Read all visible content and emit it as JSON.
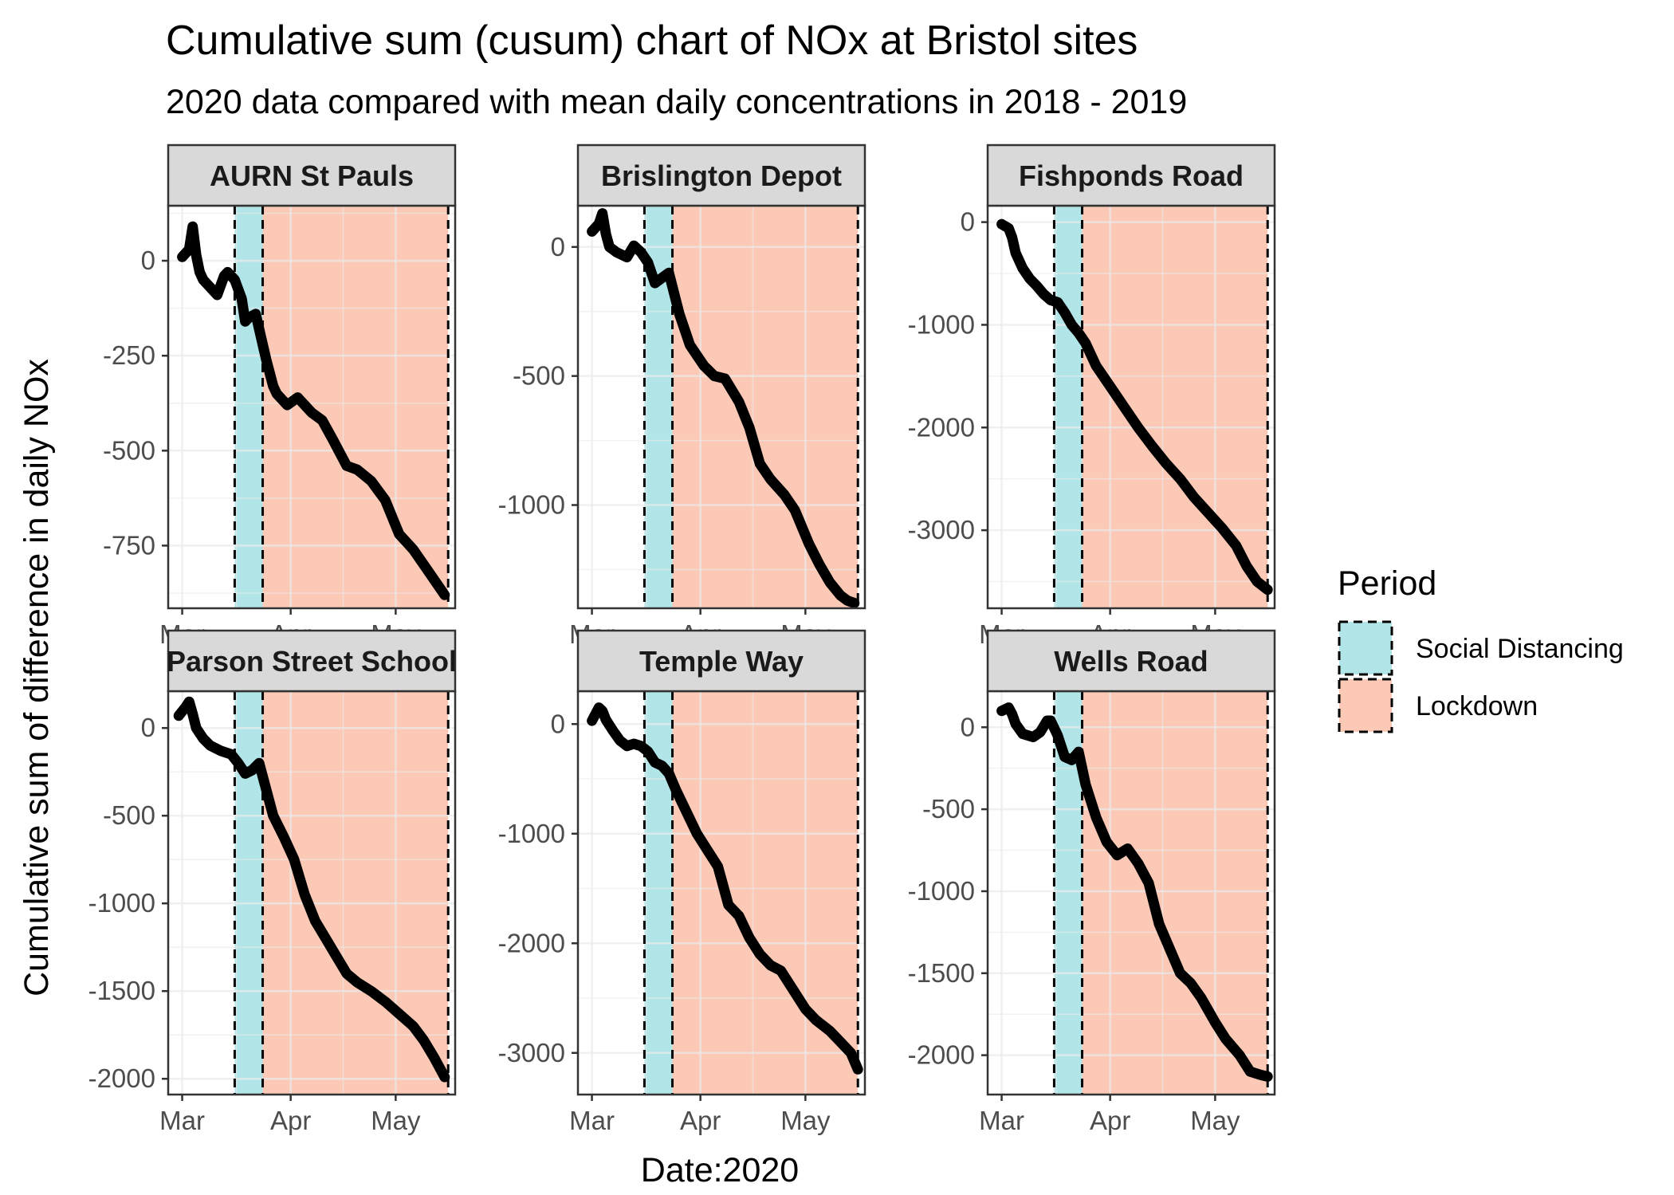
{
  "title": "Cumulative sum (cusum) chart of NOx at Bristol sites",
  "subtitle": "2020 data compared with mean daily concentrations in 2018 - 2019",
  "chart_data": {
    "type": "line",
    "facets": true,
    "xlabel": "Date:2020",
    "ylabel": "Cumulative sum of difference in daily NOx",
    "x_ticks": [
      "Mar",
      "Apr",
      "May"
    ],
    "x_tick_dates": [
      "2020-03-01",
      "2020-04-01",
      "2020-05-01"
    ],
    "xlim": [
      "2020-02-26",
      "2020-05-18"
    ],
    "periods": [
      {
        "name": "Social Distancing",
        "start": "2020-03-16",
        "end": "2020-03-24",
        "color": "#b2e5e8"
      },
      {
        "name": "Lockdown",
        "start": "2020-03-24",
        "end": "2020-05-16",
        "color": "#fbc9b6"
      }
    ],
    "panels": [
      {
        "site": "AURN St Pauls",
        "ylim": [
          -915,
          145
        ],
        "y_ticks": [
          0,
          -250,
          -500,
          -750
        ],
        "tick_labels": [
          "0",
          "-250",
          "-500",
          "-750"
        ],
        "series": {
          "dates": [
            "2020-03-01",
            "2020-03-03",
            "2020-03-04",
            "2020-03-05",
            "2020-03-06",
            "2020-03-07",
            "2020-03-09",
            "2020-03-11",
            "2020-03-13",
            "2020-03-14",
            "2020-03-16",
            "2020-03-18",
            "2020-03-19",
            "2020-03-20",
            "2020-03-22",
            "2020-03-23",
            "2020-03-25",
            "2020-03-27",
            "2020-03-28",
            "2020-03-31",
            "2020-04-03",
            "2020-04-05",
            "2020-04-07",
            "2020-04-10",
            "2020-04-13",
            "2020-04-17",
            "2020-04-20",
            "2020-04-24",
            "2020-04-28",
            "2020-05-02",
            "2020-05-06",
            "2020-05-09",
            "2020-05-12",
            "2020-05-15"
          ],
          "values": [
            10,
            30,
            90,
            15,
            -30,
            -50,
            -70,
            -90,
            -40,
            -30,
            -50,
            -100,
            -160,
            -150,
            -140,
            -180,
            -260,
            -330,
            -350,
            -380,
            -360,
            -380,
            -400,
            -420,
            -470,
            -540,
            -550,
            -580,
            -630,
            -720,
            -760,
            -800,
            -840,
            -880
          ]
        }
      },
      {
        "site": "Brislington Depot",
        "ylim": [
          -1400,
          160
        ],
        "y_ticks": [
          0,
          -500,
          -1000
        ],
        "tick_labels": [
          "0",
          "-500",
          "-1000"
        ],
        "series": {
          "dates": [
            "2020-03-01",
            "2020-03-03",
            "2020-03-04",
            "2020-03-05",
            "2020-03-06",
            "2020-03-08",
            "2020-03-11",
            "2020-03-13",
            "2020-03-15",
            "2020-03-17",
            "2020-03-19",
            "2020-03-21",
            "2020-03-23",
            "2020-03-26",
            "2020-03-29",
            "2020-04-02",
            "2020-04-05",
            "2020-04-08",
            "2020-04-12",
            "2020-04-15",
            "2020-04-18",
            "2020-04-21",
            "2020-04-25",
            "2020-04-28",
            "2020-05-02",
            "2020-05-05",
            "2020-05-08",
            "2020-05-11",
            "2020-05-13",
            "2020-05-15"
          ],
          "values": [
            60,
            90,
            130,
            50,
            0,
            -20,
            -40,
            5,
            -20,
            -60,
            -140,
            -120,
            -100,
            -260,
            -380,
            -460,
            -500,
            -510,
            -600,
            -700,
            -840,
            -900,
            -960,
            -1020,
            -1150,
            -1230,
            -1300,
            -1350,
            -1370,
            -1380
          ]
        }
      },
      {
        "site": "Fishponds Road",
        "ylim": [
          -3760,
          160
        ],
        "y_ticks": [
          0,
          -1000,
          -2000,
          -3000
        ],
        "tick_labels": [
          "0",
          "-1000",
          "-2000",
          "-3000"
        ],
        "series": {
          "dates": [
            "2020-03-01",
            "2020-03-03",
            "2020-03-04",
            "2020-03-05",
            "2020-03-07",
            "2020-03-09",
            "2020-03-11",
            "2020-03-13",
            "2020-03-15",
            "2020-03-17",
            "2020-03-19",
            "2020-03-21",
            "2020-03-23",
            "2020-03-25",
            "2020-03-28",
            "2020-04-01",
            "2020-04-05",
            "2020-04-09",
            "2020-04-13",
            "2020-04-17",
            "2020-04-21",
            "2020-04-25",
            "2020-04-29",
            "2020-05-03",
            "2020-05-07",
            "2020-05-10",
            "2020-05-13",
            "2020-05-16"
          ],
          "values": [
            -20,
            -60,
            -150,
            -300,
            -450,
            -550,
            -620,
            -700,
            -760,
            -780,
            -880,
            -1000,
            -1080,
            -1180,
            -1400,
            -1600,
            -1800,
            -2000,
            -2180,
            -2350,
            -2500,
            -2680,
            -2830,
            -2980,
            -3150,
            -3350,
            -3500,
            -3580
          ]
        }
      },
      {
        "site": "Parson Street School",
        "ylim": [
          -2090,
          210
        ],
        "y_ticks": [
          0,
          -500,
          -1000,
          -1500,
          -2000
        ],
        "tick_labels": [
          "0",
          "-500",
          "-1000",
          "-1500",
          "-2000"
        ],
        "series": {
          "dates": [
            "2020-02-29",
            "2020-03-02",
            "2020-03-03",
            "2020-03-04",
            "2020-03-05",
            "2020-03-07",
            "2020-03-09",
            "2020-03-12",
            "2020-03-15",
            "2020-03-17",
            "2020-03-19",
            "2020-03-21",
            "2020-03-23",
            "2020-03-25",
            "2020-03-27",
            "2020-03-30",
            "2020-04-02",
            "2020-04-05",
            "2020-04-08",
            "2020-04-11",
            "2020-04-14",
            "2020-04-17",
            "2020-04-20",
            "2020-04-24",
            "2020-04-28",
            "2020-05-02",
            "2020-05-06",
            "2020-05-09",
            "2020-05-12",
            "2020-05-15"
          ],
          "values": [
            70,
            120,
            150,
            80,
            0,
            -60,
            -100,
            -130,
            -150,
            -200,
            -260,
            -240,
            -200,
            -350,
            -500,
            -620,
            -750,
            -950,
            -1100,
            -1200,
            -1300,
            -1400,
            -1450,
            -1500,
            -1560,
            -1630,
            -1700,
            -1780,
            -1880,
            -1990
          ]
        }
      },
      {
        "site": "Temple Way",
        "ylim": [
          -3380,
          300
        ],
        "y_ticks": [
          0,
          -1000,
          -2000,
          -3000
        ],
        "tick_labels": [
          "0",
          "-1000",
          "-2000",
          "-3000"
        ],
        "series": {
          "dates": [
            "2020-03-01",
            "2020-03-03",
            "2020-03-04",
            "2020-03-05",
            "2020-03-07",
            "2020-03-09",
            "2020-03-11",
            "2020-03-13",
            "2020-03-15",
            "2020-03-17",
            "2020-03-19",
            "2020-03-21",
            "2020-03-23",
            "2020-03-25",
            "2020-03-28",
            "2020-03-31",
            "2020-04-03",
            "2020-04-06",
            "2020-04-09",
            "2020-04-12",
            "2020-04-15",
            "2020-04-18",
            "2020-04-21",
            "2020-04-24",
            "2020-04-27",
            "2020-05-01",
            "2020-05-04",
            "2020-05-08",
            "2020-05-11",
            "2020-05-14",
            "2020-05-16"
          ],
          "values": [
            30,
            150,
            120,
            40,
            -60,
            -150,
            -200,
            -180,
            -200,
            -250,
            -350,
            -380,
            -450,
            -600,
            -800,
            -1000,
            -1150,
            -1300,
            -1650,
            -1750,
            -1950,
            -2100,
            -2200,
            -2250,
            -2400,
            -2600,
            -2700,
            -2800,
            -2900,
            -3000,
            -3150
          ]
        }
      },
      {
        "site": "Wells Road",
        "ylim": [
          -2240,
          220
        ],
        "y_ticks": [
          0,
          -500,
          -1000,
          -1500,
          -2000
        ],
        "tick_labels": [
          "0",
          "-500",
          "-1000",
          "-1500",
          "-2000"
        ],
        "series": {
          "dates": [
            "2020-03-01",
            "2020-03-03",
            "2020-03-04",
            "2020-03-05",
            "2020-03-07",
            "2020-03-10",
            "2020-03-12",
            "2020-03-14",
            "2020-03-15",
            "2020-03-17",
            "2020-03-19",
            "2020-03-21",
            "2020-03-23",
            "2020-03-25",
            "2020-03-28",
            "2020-03-31",
            "2020-04-03",
            "2020-04-06",
            "2020-04-09",
            "2020-04-12",
            "2020-04-15",
            "2020-04-18",
            "2020-04-21",
            "2020-04-24",
            "2020-04-27",
            "2020-05-01",
            "2020-05-04",
            "2020-05-08",
            "2020-05-11",
            "2020-05-14",
            "2020-05-16"
          ],
          "values": [
            100,
            120,
            80,
            20,
            -40,
            -60,
            -30,
            40,
            40,
            -50,
            -180,
            -200,
            -150,
            -350,
            -550,
            -700,
            -780,
            -740,
            -830,
            -950,
            -1200,
            -1350,
            -1500,
            -1560,
            -1650,
            -1800,
            -1900,
            -2000,
            -2100,
            -2120,
            -2130
          ]
        }
      }
    ],
    "legend": {
      "title": "Period",
      "position": "right",
      "items": [
        {
          "label": "Social Distancing",
          "color": "#b2e5e8"
        },
        {
          "label": "Lockdown",
          "color": "#fbc9b6"
        }
      ]
    },
    "grid": true
  }
}
